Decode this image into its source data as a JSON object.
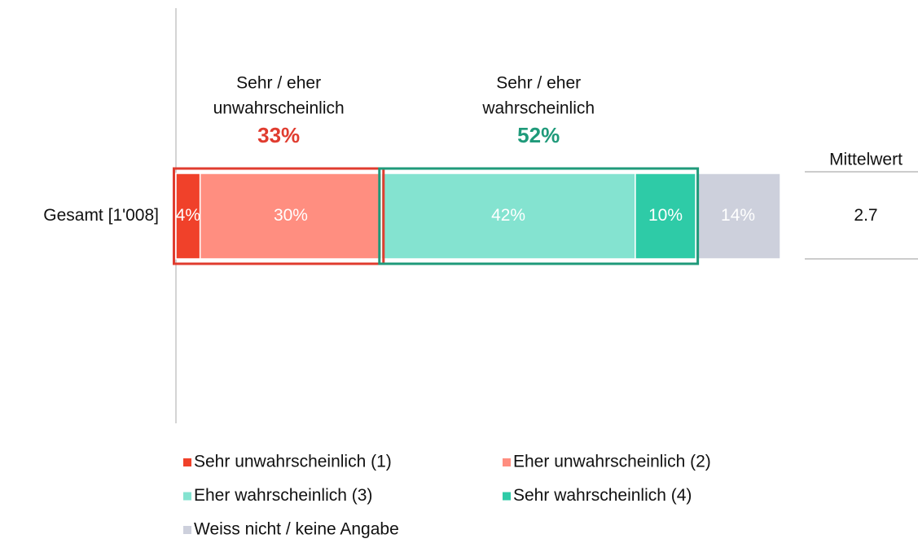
{
  "chart_data": {
    "type": "stacked_bar",
    "categories": [
      "Gesamt [1'008]"
    ],
    "series": [
      {
        "name": "Sehr unwahrscheinlich (1)",
        "color": "#f0412a",
        "values": [
          4
        ],
        "value_labels": [
          "4%"
        ]
      },
      {
        "name": "Eher unwahrscheinlich (2)",
        "color": "#ff8e80",
        "values": [
          30
        ],
        "value_labels": [
          "30%"
        ]
      },
      {
        "name": "Eher wahrscheinlich (3)",
        "color": "#84e3d0",
        "values": [
          42
        ],
        "value_labels": [
          "42%"
        ]
      },
      {
        "name": "Sehr wahrscheinlich (4)",
        "color": "#2ecba7",
        "values": [
          10
        ],
        "value_labels": [
          "10%"
        ]
      },
      {
        "name": "Weiss nicht / keine Angabe",
        "color": "#cdd0dc",
        "values": [
          14
        ],
        "value_labels": [
          "14%"
        ]
      }
    ],
    "groups": [
      {
        "label_lines": [
          "Sehr / eher",
          "unwahrscheinlich"
        ],
        "value": 33,
        "value_label": "33%",
        "color": "#e03c2f"
      },
      {
        "label_lines": [
          "Sehr / eher",
          "wahrscheinlich"
        ],
        "value": 52,
        "value_label": "52%",
        "color": "#1f9a7a"
      }
    ],
    "mean_label": "Mittelwert",
    "mean_values": [
      2.7
    ]
  }
}
